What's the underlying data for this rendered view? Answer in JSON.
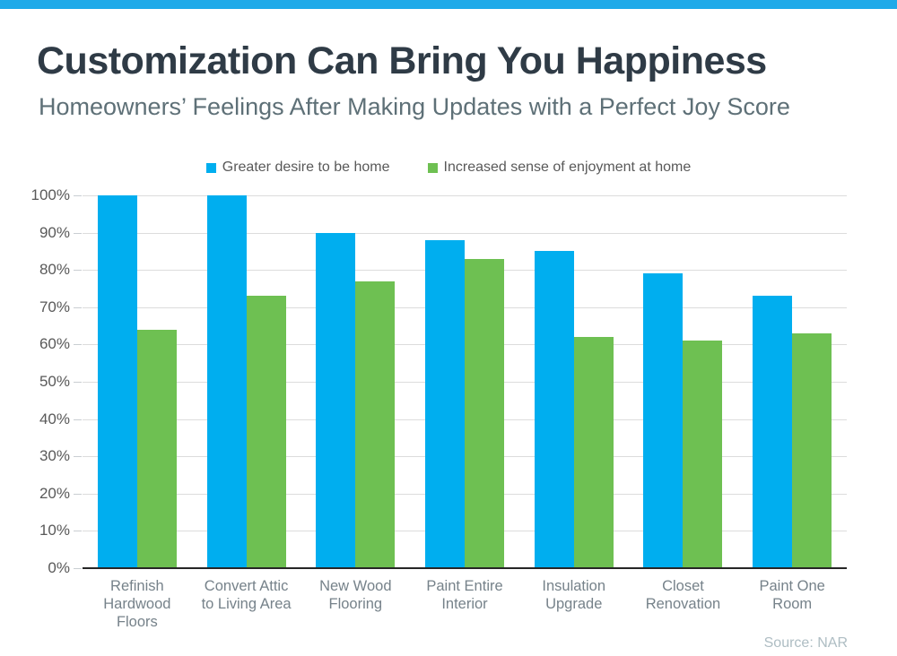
{
  "header": {
    "title": "Customization Can Bring You Happiness",
    "subtitle": "Homeowners’ Feelings After Making Updates with a Perfect Joy Score"
  },
  "chart_data": {
    "type": "bar",
    "title": "Customization Can Bring You Happiness",
    "subtitle": "Homeowners’ Feelings After Making Updates with a Perfect Joy Score",
    "categories": [
      "Refinish Hardwood Floors",
      "Convert Attic to Living Area",
      "New Wood Flooring",
      "Paint Entire Interior",
      "Insulation Upgrade",
      "Closet Renovation",
      "Paint One Room"
    ],
    "series": [
      {
        "name": "Greater desire to be home",
        "color": "#00AEEF",
        "values": [
          100,
          100,
          90,
          88,
          85,
          79,
          73
        ]
      },
      {
        "name": "Increased sense of enjoyment at home",
        "color": "#6EC052",
        "values": [
          64,
          73,
          77,
          83,
          62,
          61,
          63
        ]
      }
    ],
    "xlabel": "",
    "ylabel": "",
    "ylim": [
      0,
      100
    ],
    "y_tick_step": 10,
    "y_tick_labels": [
      "0%",
      "10%",
      "20%",
      "30%",
      "40%",
      "50%",
      "60%",
      "70%",
      "80%",
      "90%",
      "100%"
    ],
    "grid": true,
    "legend_position": "top-center",
    "source": "Source: NAR"
  },
  "theme": {
    "top_strip_color": "#1FAAE9",
    "title_color": "#2F3B46",
    "subtitle_color": "#5E7077",
    "legend_text_color": "#595959",
    "y_axis_label_color": "#595959",
    "category_label_color": "#76828A",
    "gridline_color": "#DCDCDC",
    "axis_line_color": "#262626",
    "source_color": "#AEBDC3",
    "background_color": "#FFFFFF"
  }
}
